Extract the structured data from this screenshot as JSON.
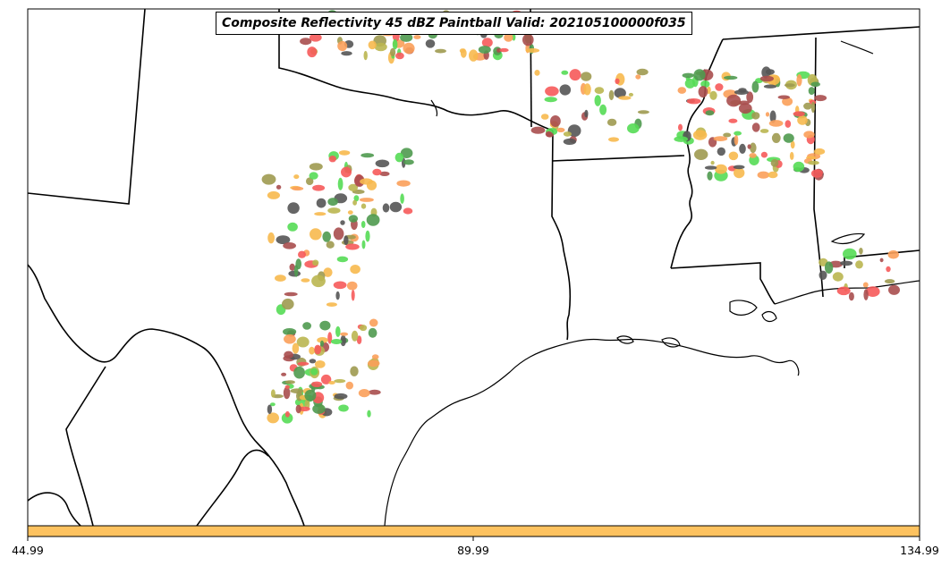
{
  "title": "Composite Reflectivity 45 dBZ Paintball Valid: 202105100000f035",
  "colorbar": {
    "color": "#fdc25f",
    "ticks": [
      "44.99",
      "89.99",
      "134.99"
    ]
  },
  "paintball_colors": {
    "red": "#f65a5a",
    "orange": "#fba05a",
    "yellow_orange": "#f7b94e",
    "green": "#55dc55",
    "dark_green": "#4f9a4f",
    "olive": "#9e9a50",
    "dark_olive": "#4d5a14",
    "brown": "#a84e4e",
    "gray": "#555555",
    "khaki": "#bab650"
  }
}
